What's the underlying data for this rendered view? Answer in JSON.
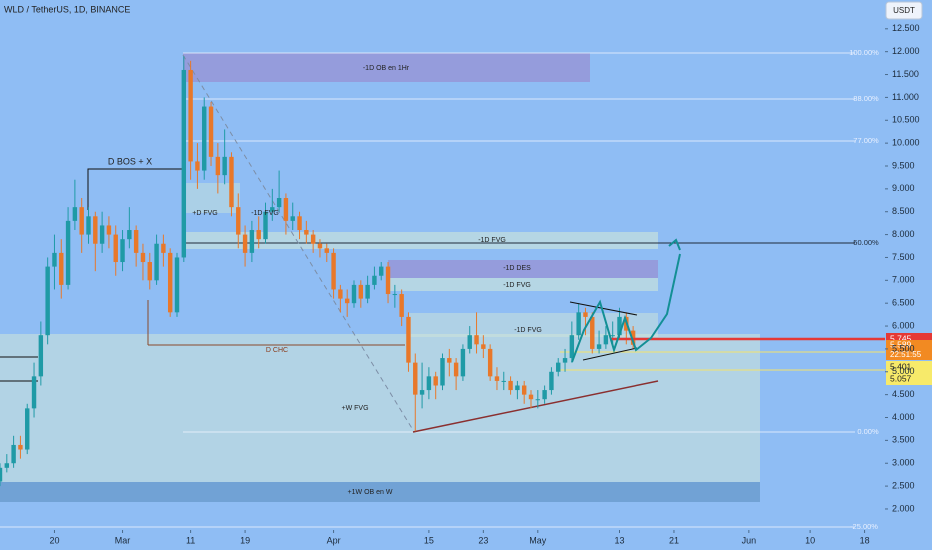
{
  "chart_data": {
    "type": "candlestick",
    "title": "WLD / TetherUS, 1D, BINANCE",
    "currency": "USDT",
    "up_color": "#1f9aa6",
    "down_color": "#e8782a",
    "x": [
      "Feb 12",
      "Feb 13",
      "Feb 14",
      "Feb 15",
      "Feb 16",
      "Feb 17",
      "Feb 18",
      "Feb 19",
      "Feb 20",
      "Feb 21",
      "Feb 22",
      "Feb 23",
      "Feb 24",
      "Feb 25",
      "Feb 26",
      "Feb 27",
      "Feb 28",
      "Feb 29",
      "Mar 1",
      "Mar 2",
      "Mar 3",
      "Mar 4",
      "Mar 5",
      "Mar 6",
      "Mar 7",
      "Mar 8",
      "Mar 9",
      "Mar 10",
      "Mar 11",
      "Mar 12",
      "Mar 13",
      "Mar 14",
      "Mar 15",
      "Mar 16",
      "Mar 17",
      "Mar 18",
      "Mar 19",
      "Mar 20",
      "Mar 21",
      "Mar 22",
      "Mar 23",
      "Mar 24",
      "Mar 25",
      "Mar 26",
      "Mar 27",
      "Mar 28",
      "Mar 29",
      "Mar 30",
      "Mar 31",
      "Apr 1",
      "Apr 2",
      "Apr 3",
      "Apr 4",
      "Apr 5",
      "Apr 6",
      "Apr 7",
      "Apr 8",
      "Apr 9",
      "Apr 10",
      "Apr 11",
      "Apr 12",
      "Apr 13",
      "Apr 14",
      "Apr 15",
      "Apr 16",
      "Apr 17",
      "Apr 18",
      "Apr 19",
      "Apr 20",
      "Apr 21",
      "Apr 22",
      "Apr 23",
      "Apr 24",
      "Apr 25",
      "Apr 26",
      "Apr 27",
      "Apr 28",
      "Apr 29",
      "Apr 30",
      "May 1",
      "May 2",
      "May 3",
      "May 4",
      "May 5",
      "May 6",
      "May 7",
      "May 8",
      "May 9",
      "May 10",
      "May 11",
      "May 12",
      "May 13",
      "May 14",
      "May 15"
    ],
    "open": [
      2.6,
      2.9,
      3.0,
      3.4,
      3.3,
      4.2,
      4.9,
      5.8,
      7.3,
      7.6,
      6.9,
      8.3,
      8.6,
      8.0,
      8.4,
      7.8,
      8.2,
      8.0,
      7.4,
      7.9,
      8.1,
      7.6,
      7.4,
      7.0,
      7.8,
      7.6,
      6.3,
      7.5,
      11.6,
      9.6,
      9.4,
      10.8,
      9.7,
      9.3,
      9.7,
      8.6,
      8.0,
      7.6,
      8.1,
      7.9,
      8.5,
      8.6,
      8.8,
      8.3,
      8.4,
      8.1,
      8.0,
      7.8,
      7.7,
      7.6,
      6.8,
      6.6,
      6.5,
      6.9,
      6.6,
      6.9,
      7.1,
      7.3,
      6.7,
      6.7,
      6.2,
      5.2,
      4.5,
      4.6,
      4.9,
      4.7,
      5.3,
      5.2,
      4.9,
      5.5,
      5.8,
      5.6,
      5.5,
      4.9,
      4.8,
      4.8,
      4.6,
      4.7,
      4.5,
      4.4,
      4.4,
      4.6,
      5.0,
      5.2,
      5.3,
      5.8,
      6.3,
      6.2,
      5.5,
      5.6,
      5.8,
      5.8,
      6.2,
      5.9
    ],
    "high": [
      3.0,
      3.2,
      3.6,
      3.6,
      4.3,
      5.2,
      6.1,
      7.5,
      8.0,
      7.9,
      8.6,
      9.2,
      8.8,
      8.6,
      8.5,
      8.5,
      8.4,
      8.2,
      8.1,
      8.6,
      8.2,
      7.8,
      7.6,
      8.0,
      8.0,
      7.7,
      7.6,
      11.9,
      11.8,
      10.0,
      11.0,
      10.9,
      10.0,
      10.3,
      9.8,
      8.9,
      8.2,
      8.3,
      8.4,
      8.7,
      9.0,
      9.4,
      8.9,
      8.7,
      8.5,
      8.3,
      8.1,
      7.9,
      7.8,
      7.7,
      6.9,
      6.8,
      7.0,
      7.0,
      7.1,
      7.3,
      7.4,
      7.4,
      6.9,
      6.8,
      6.3,
      5.4,
      5.2,
      5.1,
      5.0,
      5.4,
      5.5,
      5.3,
      5.6,
      6.0,
      6.3,
      5.8,
      5.6,
      5.1,
      5.0,
      4.9,
      4.8,
      4.8,
      4.6,
      4.6,
      4.7,
      5.1,
      5.3,
      5.5,
      6.1,
      6.5,
      6.4,
      6.3,
      5.9,
      6.0,
      6.1,
      6.4,
      6.3,
      6.0
    ],
    "low": [
      2.5,
      2.8,
      2.9,
      3.1,
      3.2,
      4.0,
      4.7,
      5.6,
      6.8,
      6.6,
      6.8,
      8.1,
      7.6,
      7.8,
      7.2,
      7.6,
      7.7,
      7.1,
      7.2,
      7.7,
      7.3,
      7.0,
      6.8,
      6.9,
      7.3,
      6.2,
      6.2,
      7.4,
      9.2,
      9.0,
      9.2,
      9.5,
      8.9,
      9.1,
      8.4,
      7.7,
      7.3,
      7.4,
      7.7,
      7.8,
      8.3,
      8.5,
      8.0,
      8.1,
      7.9,
      7.8,
      7.6,
      7.5,
      7.4,
      6.6,
      6.3,
      6.2,
      6.4,
      6.4,
      6.5,
      6.8,
      7.0,
      6.5,
      6.4,
      6.0,
      5.0,
      3.7,
      4.2,
      4.4,
      4.4,
      4.6,
      4.9,
      4.6,
      4.8,
      5.4,
      5.4,
      5.3,
      4.8,
      4.6,
      4.6,
      4.5,
      4.4,
      4.3,
      4.2,
      4.2,
      4.3,
      4.5,
      4.9,
      5.0,
      5.2,
      5.7,
      5.8,
      5.4,
      5.4,
      5.5,
      5.6,
      5.7,
      5.6,
      5.5
    ],
    "close": [
      2.9,
      3.0,
      3.4,
      3.3,
      4.2,
      4.9,
      5.8,
      7.3,
      7.6,
      6.9,
      8.3,
      8.6,
      8.0,
      8.4,
      7.8,
      8.2,
      8.0,
      7.4,
      7.9,
      8.1,
      7.6,
      7.4,
      7.0,
      7.8,
      7.6,
      6.3,
      7.5,
      11.6,
      9.6,
      9.4,
      10.8,
      9.7,
      9.3,
      9.7,
      8.6,
      8.0,
      7.6,
      8.1,
      7.9,
      8.5,
      8.6,
      8.8,
      8.3,
      8.4,
      8.1,
      8.0,
      7.8,
      7.7,
      7.6,
      6.8,
      6.6,
      6.5,
      6.9,
      6.6,
      6.9,
      7.1,
      7.3,
      6.7,
      6.7,
      6.2,
      5.2,
      4.5,
      4.6,
      4.9,
      4.7,
      5.3,
      5.2,
      4.9,
      5.5,
      5.8,
      5.6,
      5.5,
      4.9,
      4.8,
      4.8,
      4.6,
      4.7,
      4.5,
      4.4,
      4.4,
      4.6,
      5.0,
      5.2,
      5.3,
      5.8,
      6.3,
      6.2,
      5.5,
      5.6,
      5.8,
      5.8,
      6.2,
      5.9,
      5.59
    ],
    "xlim": [
      "Feb 12",
      "Jun 21"
    ],
    "xticks": [
      {
        "value": "Feb 20",
        "label": "20"
      },
      {
        "value": "Mar 1",
        "label": "Mar"
      },
      {
        "value": "Mar 11",
        "label": "11"
      },
      {
        "value": "Mar 19",
        "label": "19"
      },
      {
        "value": "Apr 1",
        "label": "Apr"
      },
      {
        "value": "Apr 15",
        "label": "15"
      },
      {
        "value": "Apr 23",
        "label": "23"
      },
      {
        "value": "May 1",
        "label": "May"
      },
      {
        "value": "May 13",
        "label": "13"
      },
      {
        "value": "May 21",
        "label": "21"
      },
      {
        "value": "Jun 1",
        "label": "Jun"
      },
      {
        "value": "Jun 10",
        "label": "10"
      },
      {
        "value": "Jun 18",
        "label": "18"
      }
    ],
    "ylim": [
      1.54,
      13.13
    ],
    "yticks": [
      {
        "value": 2,
        "label": "2.000"
      },
      {
        "value": 2.5,
        "label": "2.500"
      },
      {
        "value": 3,
        "label": "3.000"
      },
      {
        "value": 3.5,
        "label": "3.500"
      },
      {
        "value": 4,
        "label": "4.000"
      },
      {
        "value": 4.5,
        "label": "4.500"
      },
      {
        "value": 5,
        "label": "5.000"
      },
      {
        "value": 5.5,
        "label": "5.500"
      },
      {
        "value": 6,
        "label": "6.000"
      },
      {
        "value": 6.5,
        "label": "6.500"
      },
      {
        "value": 7,
        "label": "7.000"
      },
      {
        "value": 7.5,
        "label": "7.500"
      },
      {
        "value": 8,
        "label": "8.000"
      },
      {
        "value": 8.5,
        "label": "8.500"
      },
      {
        "value": 9,
        "label": "9.000"
      },
      {
        "value": 9.5,
        "label": "9.500"
      },
      {
        "value": 10,
        "label": "10.000"
      },
      {
        "value": 10.5,
        "label": "10.500"
      },
      {
        "value": 11,
        "label": "11.000"
      },
      {
        "value": 11.5,
        "label": "11.500"
      },
      {
        "value": 12,
        "label": "12.000"
      },
      {
        "value": 12.5,
        "label": "12.500"
      }
    ],
    "annotations": [
      "D BOS + X",
      "-1D OB en 1Hr",
      "+D FVG",
      "-1D FVG",
      "-1D FVG",
      "-1D DES",
      "-1D FVG",
      "-1D FVG",
      "D CHC",
      "+W FVG",
      "+1W OB en W"
    ],
    "fib_labels": [
      "100.00%",
      "88.00%",
      "77.00%",
      "50.00%",
      "0.00%",
      "-25.00%"
    ],
    "price_labels": [
      "5.745",
      "5.589",
      "22:51:55",
      "5.401",
      "5.057"
    ]
  }
}
